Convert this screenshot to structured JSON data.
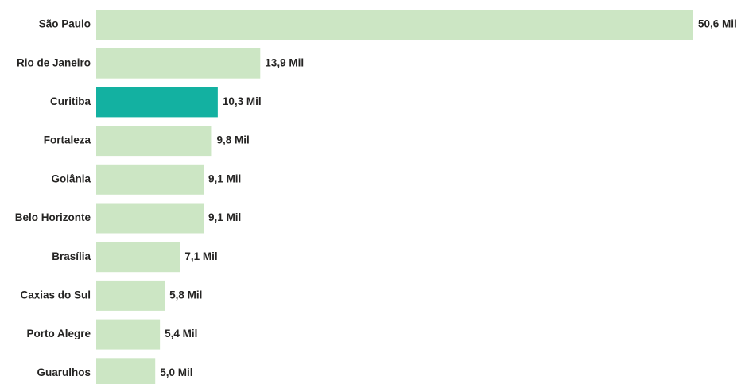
{
  "chart_data": {
    "type": "bar",
    "orientation": "horizontal",
    "categories": [
      "São Paulo",
      "Rio de Janeiro",
      "Curitiba",
      "Fortaleza",
      "Goiânia",
      "Belo Horizonte",
      "Brasília",
      "Caxias do Sul",
      "Porto Alegre",
      "Guarulhos"
    ],
    "values": [
      50.6,
      13.9,
      10.3,
      9.8,
      9.1,
      9.1,
      7.1,
      5.8,
      5.4,
      5.0
    ],
    "value_labels": [
      "50,6 Mil",
      "13,9 Mil",
      "10,3 Mil",
      "9,8 Mil",
      "9,1 Mil",
      "9,1 Mil",
      "7,1 Mil",
      "5,8 Mil",
      "5,4 Mil",
      "5,0 Mil"
    ],
    "colors": [
      "#cce6c4",
      "#cce6c4",
      "#13b1a1",
      "#cce6c4",
      "#cce6c4",
      "#cce6c4",
      "#cce6c4",
      "#cce6c4",
      "#cce6c4",
      "#cce6c4"
    ]
  }
}
